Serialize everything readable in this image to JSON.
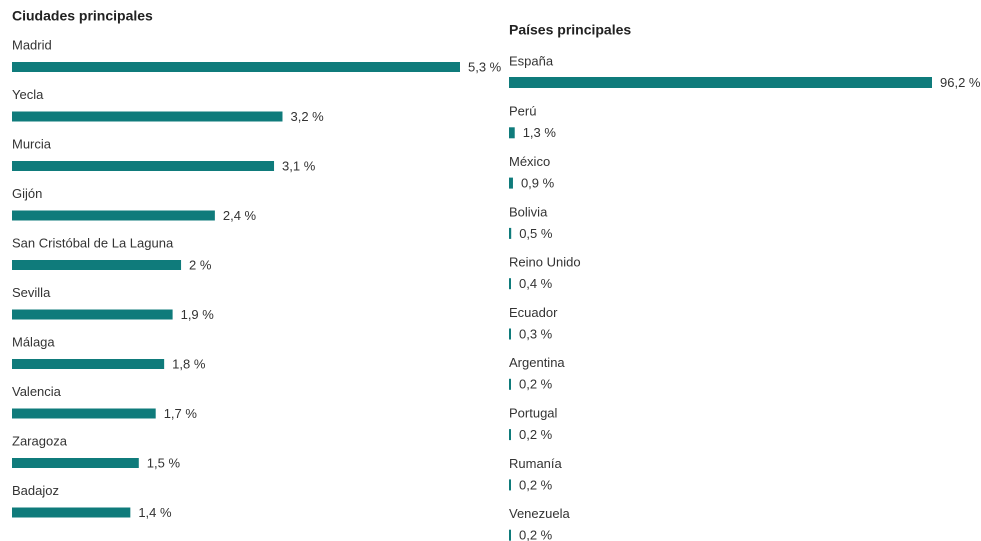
{
  "chart_data": [
    {
      "type": "bar",
      "orientation": "horizontal",
      "title": "Ciudades principales",
      "color": "#0f7b7b",
      "categories": [
        "Madrid",
        "Yecla",
        "Murcia",
        "Gijón",
        "San Cristóbal de La Laguna",
        "Sevilla",
        "Málaga",
        "Valencia",
        "Zaragoza",
        "Badajoz"
      ],
      "values": [
        5.3,
        3.2,
        3.1,
        2.4,
        2,
        1.9,
        1.8,
        1.7,
        1.5,
        1.4
      ],
      "value_labels": [
        "5,3 %",
        "3,2 %",
        "3,1 %",
        "2,4 %",
        "2 %",
        "1,9 %",
        "1,8 %",
        "1,7 %",
        "1,5 %",
        "1,4 %"
      ]
    },
    {
      "type": "bar",
      "orientation": "horizontal",
      "title": "Países principales",
      "color": "#0f7b7b",
      "categories": [
        "España",
        "Perú",
        "México",
        "Bolivia",
        "Reino Unido",
        "Ecuador",
        "Argentina",
        "Portugal",
        "Rumanía",
        "Venezuela"
      ],
      "values": [
        96.2,
        1.3,
        0.9,
        0.5,
        0.4,
        0.3,
        0.2,
        0.2,
        0.2,
        0.2
      ],
      "value_labels": [
        "96,2 %",
        "1,3 %",
        "0,9 %",
        "0,5 %",
        "0,4 %",
        "0,3 %",
        "0,2 %",
        "0,2 %",
        "0,2 %",
        "0,2 %"
      ]
    }
  ]
}
